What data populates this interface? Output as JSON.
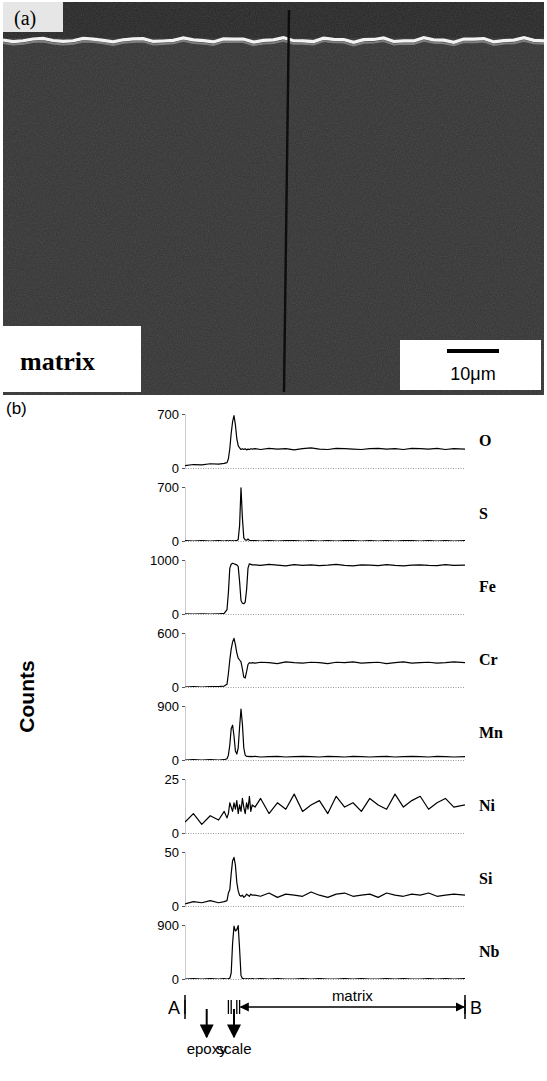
{
  "figure": {
    "panel_a": {
      "label": "(a)",
      "text": "matrix",
      "scale_bar": "10μm"
    },
    "panel_b": {
      "label": "(b)",
      "y_label": "Counts",
      "scan_start": "A",
      "scan_end": "B",
      "regions": [
        {
          "label": "epoxy",
          "from": 0,
          "to": 15.5
        },
        {
          "label": "scale",
          "from": 16.5,
          "to": 18.5
        },
        {
          "label": "matrix",
          "from": 19.5,
          "to": 100
        }
      ]
    }
  },
  "chart_data": [
    {
      "type": "line",
      "title": "O",
      "color": "#000000",
      "tick_labels": "y",
      "xlim": [
        0,
        100
      ],
      "ylim": [
        0,
        700
      ],
      "yticks": [
        0,
        700
      ],
      "x": [
        0,
        3,
        6,
        9,
        12,
        14,
        15,
        15.5,
        16,
        16.5,
        17,
        17.5,
        18,
        18.5,
        19,
        19.5,
        20,
        20.5,
        21,
        21.5,
        22,
        22.5,
        23,
        23.5,
        24,
        25,
        27,
        30,
        33,
        36,
        39,
        42,
        45,
        48,
        51,
        54,
        57,
        60,
        63,
        66,
        69,
        72,
        75,
        78,
        81,
        84,
        87,
        90,
        93,
        96,
        100
      ],
      "values": [
        30,
        45,
        40,
        55,
        50,
        60,
        70,
        120,
        250,
        450,
        600,
        680,
        560,
        380,
        290,
        260,
        240,
        250,
        240,
        250,
        235,
        245,
        240,
        250,
        245,
        250,
        240,
        255,
        245,
        250,
        235,
        250,
        260,
        245,
        240,
        255,
        250,
        245,
        240,
        250,
        255,
        245,
        250,
        240,
        255,
        250,
        245,
        255,
        240,
        250,
        245
      ]
    },
    {
      "type": "line",
      "title": "S",
      "color": "#000000",
      "tick_labels": "y",
      "xlim": [
        0,
        100
      ],
      "ylim": [
        0,
        700
      ],
      "yticks": [
        0,
        700
      ],
      "x": [
        0,
        3,
        6,
        9,
        12,
        14,
        15,
        15.5,
        16,
        16.5,
        17,
        17.5,
        18,
        18.5,
        19,
        19.5,
        20,
        20.5,
        21,
        21.5,
        22,
        22.5,
        23,
        23.5,
        24,
        25,
        27,
        30,
        33,
        36,
        39,
        42,
        45,
        48,
        51,
        54,
        57,
        60,
        63,
        66,
        69,
        72,
        75,
        78,
        81,
        84,
        87,
        90,
        93,
        96,
        100
      ],
      "values": [
        5,
        0,
        5,
        0,
        5,
        0,
        5,
        0,
        5,
        0,
        5,
        0,
        5,
        5,
        20,
        200,
        690,
        300,
        40,
        15,
        10,
        25,
        10,
        5,
        5,
        5,
        0,
        5,
        0,
        5,
        5,
        0,
        5,
        0,
        5,
        0,
        5,
        5,
        0,
        5,
        0,
        5,
        0,
        5,
        5,
        0,
        5,
        0,
        5,
        0,
        5
      ]
    },
    {
      "type": "line",
      "title": "Fe",
      "color": "#000000",
      "tick_labels": "y",
      "xlim": [
        0,
        100
      ],
      "ylim": [
        0,
        1000
      ],
      "yticks": [
        0,
        1000
      ],
      "x": [
        0,
        3,
        6,
        9,
        12,
        14,
        15,
        15.5,
        16,
        16.5,
        17,
        17.5,
        18,
        18.5,
        19,
        19.5,
        20,
        20.5,
        21,
        21.5,
        22,
        22.5,
        23,
        23.5,
        24,
        25,
        27,
        30,
        33,
        36,
        39,
        42,
        45,
        48,
        51,
        54,
        57,
        60,
        63,
        66,
        69,
        72,
        75,
        78,
        81,
        84,
        87,
        90,
        93,
        96,
        100
      ],
      "values": [
        5,
        0,
        5,
        0,
        5,
        10,
        80,
        400,
        850,
        920,
        940,
        930,
        920,
        910,
        880,
        600,
        250,
        200,
        190,
        220,
        450,
        850,
        930,
        920,
        910,
        910,
        900,
        920,
        905,
        890,
        915,
        900,
        910,
        895,
        905,
        920,
        900,
        890,
        910,
        905,
        895,
        915,
        900,
        890,
        905,
        910,
        900,
        895,
        915,
        900,
        905
      ]
    },
    {
      "type": "line",
      "title": "Cr",
      "color": "#000000",
      "tick_labels": "y",
      "xlim": [
        0,
        100
      ],
      "ylim": [
        0,
        600
      ],
      "yticks": [
        0,
        600
      ],
      "x": [
        0,
        3,
        6,
        9,
        12,
        14,
        15,
        15.5,
        16,
        16.5,
        17,
        17.5,
        18,
        18.5,
        19,
        19.5,
        20,
        20.5,
        21,
        21.5,
        22,
        22.5,
        23,
        23.5,
        24,
        25,
        27,
        30,
        33,
        36,
        39,
        42,
        45,
        48,
        51,
        54,
        57,
        60,
        63,
        66,
        69,
        72,
        75,
        78,
        81,
        84,
        87,
        90,
        93,
        96,
        100
      ],
      "values": [
        0,
        5,
        0,
        5,
        5,
        10,
        30,
        150,
        300,
        420,
        500,
        540,
        470,
        380,
        320,
        300,
        280,
        200,
        110,
        100,
        170,
        250,
        270,
        265,
        270,
        265,
        275,
        270,
        260,
        280,
        270,
        265,
        275,
        270,
        260,
        275,
        270,
        280,
        265,
        270,
        275,
        260,
        270,
        280,
        265,
        270,
        275,
        265,
        270,
        280,
        270
      ]
    },
    {
      "type": "line",
      "title": "Mn",
      "color": "#000000",
      "tick_labels": "y",
      "xlim": [
        0,
        100
      ],
      "ylim": [
        0,
        900
      ],
      "yticks": [
        0,
        900
      ],
      "x": [
        0,
        3,
        6,
        9,
        12,
        14,
        15,
        15.5,
        16,
        16.5,
        17,
        17.5,
        18,
        18.5,
        19,
        19.5,
        20,
        20.5,
        21,
        21.5,
        22,
        22.5,
        23,
        23.5,
        24,
        25,
        27,
        30,
        33,
        36,
        39,
        42,
        45,
        48,
        51,
        54,
        57,
        60,
        63,
        66,
        69,
        72,
        75,
        78,
        81,
        84,
        87,
        90,
        93,
        96,
        100
      ],
      "values": [
        0,
        5,
        0,
        5,
        0,
        5,
        20,
        80,
        250,
        520,
        580,
        400,
        150,
        100,
        200,
        550,
        850,
        600,
        200,
        80,
        60,
        60,
        55,
        60,
        55,
        60,
        50,
        55,
        60,
        50,
        55,
        60,
        55,
        50,
        60,
        55,
        50,
        60,
        55,
        50,
        55,
        60,
        50,
        55,
        60,
        55,
        50,
        60,
        55,
        50,
        55
      ]
    },
    {
      "type": "line",
      "title": "Ni",
      "color": "#000000",
      "tick_labels": "y",
      "xlim": [
        0,
        100
      ],
      "ylim": [
        0,
        25
      ],
      "yticks": [
        0,
        25
      ],
      "x": [
        0,
        3,
        6,
        9,
        12,
        14,
        15,
        15.5,
        16,
        16.5,
        17,
        17.5,
        18,
        18.5,
        19,
        19.5,
        20,
        20.5,
        21,
        21.5,
        22,
        22.5,
        23,
        23.5,
        24,
        25,
        27,
        30,
        33,
        36,
        39,
        42,
        45,
        48,
        51,
        54,
        57,
        60,
        63,
        66,
        69,
        72,
        75,
        78,
        81,
        84,
        87,
        90,
        93,
        96,
        100
      ],
      "values": [
        5,
        9,
        4,
        8,
        6,
        10,
        7,
        9,
        14,
        12,
        10,
        14,
        11,
        15,
        9,
        13,
        10,
        16,
        12,
        9,
        14,
        11,
        17,
        10,
        13,
        12,
        16,
        9,
        14,
        11,
        18,
        10,
        13,
        15,
        9,
        17,
        12,
        14,
        10,
        16,
        13,
        11,
        18,
        12,
        15,
        17,
        11,
        14,
        16,
        12,
        13
      ]
    },
    {
      "type": "line",
      "title": "Si",
      "color": "#000000",
      "tick_labels": "y",
      "xlim": [
        0,
        100
      ],
      "ylim": [
        0,
        50
      ],
      "yticks": [
        0,
        50
      ],
      "x": [
        0,
        3,
        6,
        9,
        12,
        14,
        15,
        15.5,
        16,
        16.5,
        17,
        17.5,
        18,
        18.5,
        19,
        19.5,
        20,
        20.5,
        21,
        21.5,
        22,
        22.5,
        23,
        23.5,
        24,
        25,
        27,
        30,
        33,
        36,
        39,
        42,
        45,
        48,
        51,
        54,
        57,
        60,
        63,
        66,
        69,
        72,
        75,
        78,
        81,
        84,
        87,
        90,
        93,
        96,
        100
      ],
      "values": [
        2,
        4,
        3,
        5,
        3,
        4,
        5,
        12,
        15,
        30,
        42,
        45,
        38,
        22,
        14,
        10,
        9,
        10,
        8,
        9,
        11,
        10,
        9,
        11,
        10,
        10,
        9,
        12,
        8,
        11,
        10,
        9,
        13,
        10,
        8,
        11,
        12,
        9,
        10,
        11,
        8,
        12,
        10,
        9,
        11,
        10,
        12,
        9,
        10,
        11,
        10
      ]
    },
    {
      "type": "line",
      "title": "Nb",
      "color": "#000000",
      "tick_labels": "y",
      "xlim": [
        0,
        100
      ],
      "ylim": [
        0,
        900
      ],
      "yticks": [
        0,
        900
      ],
      "x": [
        0,
        3,
        6,
        9,
        12,
        14,
        15,
        15.5,
        16,
        16.5,
        17,
        17.5,
        18,
        18.5,
        19,
        19.5,
        20,
        20.5,
        21,
        21.5,
        22,
        22.5,
        23,
        23.5,
        24,
        25,
        27,
        30,
        33,
        36,
        39,
        42,
        45,
        48,
        51,
        54,
        57,
        60,
        63,
        66,
        69,
        72,
        75,
        78,
        81,
        84,
        87,
        90,
        93,
        96,
        100
      ],
      "values": [
        0,
        5,
        0,
        5,
        0,
        5,
        0,
        5,
        10,
        100,
        600,
        880,
        800,
        820,
        890,
        500,
        60,
        10,
        5,
        0,
        5,
        0,
        5,
        0,
        5,
        0,
        5,
        0,
        5,
        0,
        0,
        5,
        0,
        5,
        0,
        0,
        5,
        0,
        5,
        0,
        0,
        5,
        0,
        5,
        0,
        0,
        5,
        0,
        5,
        0,
        5
      ]
    }
  ]
}
